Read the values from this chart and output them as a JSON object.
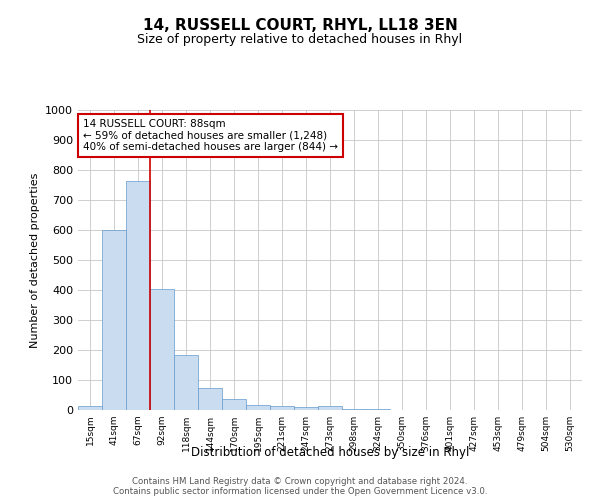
{
  "title": "14, RUSSELL COURT, RHYL, LL18 3EN",
  "subtitle": "Size of property relative to detached houses in Rhyl",
  "xlabel": "Distribution of detached houses by size in Rhyl",
  "ylabel": "Number of detached properties",
  "categories": [
    "15sqm",
    "41sqm",
    "67sqm",
    "92sqm",
    "118sqm",
    "144sqm",
    "170sqm",
    "195sqm",
    "221sqm",
    "247sqm",
    "273sqm",
    "298sqm",
    "324sqm",
    "350sqm",
    "376sqm",
    "401sqm",
    "427sqm",
    "453sqm",
    "479sqm",
    "504sqm",
    "530sqm"
  ],
  "bar_heights": [
    15,
    600,
    765,
    405,
    185,
    75,
    37,
    17,
    12,
    10,
    13,
    5,
    2,
    1,
    0,
    0,
    0,
    0,
    0,
    0,
    0
  ],
  "bar_color": "#c9dcf0",
  "bar_edge_color": "#6699cc",
  "property_line_x": 2.5,
  "property_line_color": "#cc0000",
  "annotation_text": "14 RUSSELL COURT: 88sqm\n← 59% of detached houses are smaller (1,248)\n40% of semi-detached houses are larger (844) →",
  "annotation_box_color": "#cc0000",
  "ylim": [
    0,
    1000
  ],
  "yticks": [
    0,
    100,
    200,
    300,
    400,
    500,
    600,
    700,
    800,
    900,
    1000
  ],
  "footer_line1": "Contains HM Land Registry data © Crown copyright and database right 2024.",
  "footer_line2": "Contains public sector information licensed under the Open Government Licence v3.0.",
  "background_color": "#ffffff",
  "grid_color": "#c8c8c8"
}
